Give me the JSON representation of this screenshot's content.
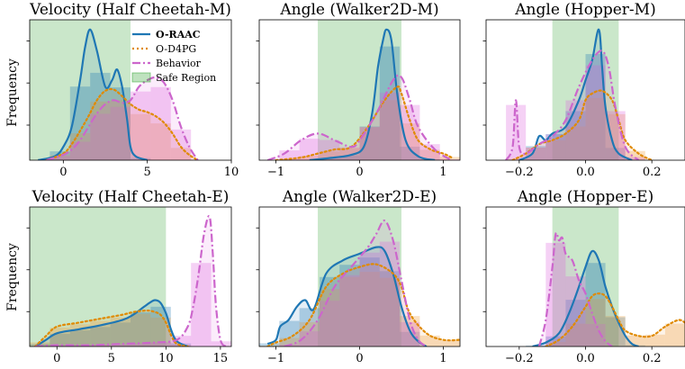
{
  "figure": {
    "ylabel": "Frequency"
  },
  "colors": {
    "oraac": "#1f77b4",
    "od4pg": "#e08a00",
    "behavior": "#cc66cc",
    "safe": "#2ca02c",
    "hist_oraac": "#1f77b4",
    "hist_od4pg": "#f0a040",
    "hist_behavior": "#dd66dd"
  },
  "legend": {
    "items": [
      {
        "label": "O-RAAC",
        "key": "oraac",
        "style": "solid"
      },
      {
        "label": "O-D4PG",
        "key": "od4pg",
        "style": "dotted"
      },
      {
        "label": "Behavior",
        "key": "behavior",
        "style": "dashdot"
      },
      {
        "label": "Safe Region",
        "key": "safe",
        "style": "patch"
      }
    ]
  },
  "chart_data": [
    {
      "type": "area",
      "title": "Velocity (Half Cheetah-M)",
      "xlim": [
        -2,
        10
      ],
      "xticks": [
        0,
        5,
        10
      ],
      "safe_region": [
        -2,
        4
      ],
      "series": [
        {
          "name": "O-RAAC",
          "x": [
            -1.5,
            -0.5,
            0,
            0.5,
            1,
            1.3,
            1.6,
            2,
            2.5,
            2.9,
            3.2,
            3.5,
            3.8,
            4,
            4.3,
            5
          ],
          "y": [
            0,
            0.03,
            0.1,
            0.25,
            0.6,
            0.85,
            0.98,
            0.82,
            0.55,
            0.6,
            0.68,
            0.55,
            0.3,
            0.1,
            0.03,
            0
          ]
        },
        {
          "name": "O-D4PG",
          "x": [
            -1,
            0,
            0.5,
            1,
            1.5,
            2,
            2.5,
            3,
            3.5,
            4,
            4.5,
            5,
            5.5,
            6,
            6.5,
            7,
            7.5,
            8
          ],
          "y": [
            0,
            0.05,
            0.12,
            0.22,
            0.33,
            0.45,
            0.52,
            0.53,
            0.48,
            0.42,
            0.38,
            0.36,
            0.33,
            0.28,
            0.2,
            0.1,
            0.04,
            0
          ]
        },
        {
          "name": "Behavior",
          "x": [
            -1,
            0,
            0.5,
            1,
            1.5,
            2,
            2.5,
            3,
            3.5,
            4,
            4.5,
            5,
            5.5,
            6,
            6.5,
            7,
            7.5,
            8
          ],
          "y": [
            0,
            0.04,
            0.08,
            0.15,
            0.25,
            0.35,
            0.42,
            0.45,
            0.43,
            0.45,
            0.55,
            0.6,
            0.62,
            0.58,
            0.45,
            0.25,
            0.1,
            0
          ]
        }
      ]
    },
    {
      "type": "area",
      "title": "Angle (Walker2D-M)",
      "xlim": [
        -1.2,
        1.2
      ],
      "xticks": [
        -1,
        0,
        1
      ],
      "safe_region": [
        -0.5,
        0.5
      ],
      "series": [
        {
          "name": "O-RAAC",
          "x": [
            -0.6,
            -0.3,
            -0.1,
            0.05,
            0.15,
            0.22,
            0.28,
            0.32,
            0.38,
            0.45,
            0.55,
            0.7,
            0.9
          ],
          "y": [
            0,
            0.02,
            0.04,
            0.1,
            0.35,
            0.7,
            0.9,
            0.98,
            0.9,
            0.5,
            0.15,
            0.03,
            0
          ]
        },
        {
          "name": "O-D4PG",
          "x": [
            -1,
            -0.7,
            -0.5,
            -0.3,
            -0.1,
            0.1,
            0.3,
            0.45,
            0.5,
            0.6,
            0.7,
            0.85,
            1,
            1.1
          ],
          "y": [
            0,
            0.02,
            0.05,
            0.08,
            0.1,
            0.25,
            0.45,
            0.55,
            0.5,
            0.3,
            0.15,
            0.08,
            0.05,
            0.02
          ]
        },
        {
          "name": "Behavior",
          "x": [
            -1.1,
            -0.9,
            -0.7,
            -0.5,
            -0.3,
            -0.1,
            0,
            0.2,
            0.4,
            0.5,
            0.6,
            0.7,
            0.9,
            1.1
          ],
          "y": [
            0,
            0.05,
            0.15,
            0.2,
            0.15,
            0.1,
            0.15,
            0.35,
            0.6,
            0.62,
            0.45,
            0.25,
            0.08,
            0
          ]
        }
      ]
    },
    {
      "type": "area",
      "title": "Angle (Hopper-M)",
      "xlim": [
        -0.3,
        0.3
      ],
      "xticks": [
        -0.2,
        0.0,
        0.2
      ],
      "safe_region": [
        -0.1,
        0.1
      ],
      "series": [
        {
          "name": "O-RAAC",
          "x": [
            -0.2,
            -0.16,
            -0.14,
            -0.12,
            -0.1,
            -0.06,
            -0.02,
            0,
            0.02,
            0.04,
            0.05,
            0.06,
            0.08,
            0.1,
            0.14
          ],
          "y": [
            0,
            0.05,
            0.18,
            0.15,
            0.2,
            0.25,
            0.45,
            0.6,
            0.75,
            0.98,
            0.7,
            0.4,
            0.15,
            0.05,
            0
          ]
        },
        {
          "name": "O-D4PG",
          "x": [
            -0.22,
            -0.18,
            -0.14,
            -0.1,
            -0.06,
            -0.02,
            0,
            0.02,
            0.05,
            0.08,
            0.1,
            0.12,
            0.16,
            0.2
          ],
          "y": [
            0,
            0.05,
            0.12,
            0.15,
            0.2,
            0.3,
            0.45,
            0.5,
            0.52,
            0.45,
            0.3,
            0.15,
            0.05,
            0
          ]
        },
        {
          "name": "Behavior",
          "x": [
            -0.24,
            -0.22,
            -0.21,
            -0.2,
            -0.18,
            -0.14,
            -0.1,
            -0.06,
            -0.02,
            0.02,
            0.05,
            0.07,
            0.09,
            0.12,
            0.16
          ],
          "y": [
            0,
            0.1,
            0.45,
            0.1,
            0.05,
            0.12,
            0.18,
            0.3,
            0.55,
            0.75,
            0.82,
            0.7,
            0.4,
            0.1,
            0
          ]
        }
      ]
    },
    {
      "type": "area",
      "title": "Velocity (Half Cheetah-E)",
      "xlim": [
        -2.5,
        16
      ],
      "xticks": [
        0,
        5,
        10,
        15
      ],
      "safe_region": [
        -2.5,
        10
      ],
      "series": [
        {
          "name": "O-RAAC",
          "x": [
            -2,
            -1,
            0,
            2,
            4,
            6,
            7,
            8,
            8.5,
            9,
            9.5,
            10,
            10.5,
            11,
            12
          ],
          "y": [
            0,
            0.05,
            0.1,
            0.13,
            0.16,
            0.2,
            0.24,
            0.3,
            0.33,
            0.35,
            0.33,
            0.25,
            0.12,
            0.04,
            0
          ]
        },
        {
          "name": "O-D4PG",
          "x": [
            -2,
            -1,
            0,
            2,
            4,
            6,
            7,
            8,
            8.5,
            9,
            9.5,
            10,
            10.5,
            11,
            12
          ],
          "y": [
            0,
            0.08,
            0.15,
            0.18,
            0.21,
            0.24,
            0.26,
            0.27,
            0.27,
            0.26,
            0.24,
            0.18,
            0.08,
            0.02,
            0
          ]
        },
        {
          "name": "Behavior",
          "x": [
            -2,
            0,
            3,
            6,
            9,
            11,
            12,
            12.5,
            13,
            13.5,
            14,
            14.3,
            14.6,
            15,
            15.5
          ],
          "y": [
            0,
            0.01,
            0.01,
            0.02,
            0.03,
            0.05,
            0.15,
            0.3,
            0.55,
            0.85,
            0.98,
            0.7,
            0.3,
            0.05,
            0
          ]
        }
      ]
    },
    {
      "type": "area",
      "title": "Angle (Walker2D-E)",
      "xlim": [
        -1.2,
        1.2
      ],
      "xticks": [
        -1,
        0,
        1
      ],
      "safe_region": [
        -0.5,
        0.5
      ],
      "series": [
        {
          "name": "O-RAAC",
          "x": [
            -1.1,
            -1,
            -0.95,
            -0.85,
            -0.75,
            -0.65,
            -0.55,
            -0.4,
            -0.2,
            0,
            0.2,
            0.3,
            0.4,
            0.5,
            0.6,
            0.7,
            0.8
          ],
          "y": [
            0.02,
            0.05,
            0.15,
            0.2,
            0.3,
            0.35,
            0.28,
            0.55,
            0.65,
            0.7,
            0.75,
            0.72,
            0.55,
            0.3,
            0.12,
            0.04,
            0
          ]
        },
        {
          "name": "O-D4PG",
          "x": [
            -1.1,
            -1,
            -0.8,
            -0.6,
            -0.4,
            -0.2,
            0,
            0.2,
            0.4,
            0.5,
            0.6,
            0.8,
            1,
            1.2
          ],
          "y": [
            0,
            0.03,
            0.08,
            0.2,
            0.45,
            0.55,
            0.6,
            0.62,
            0.55,
            0.45,
            0.25,
            0.1,
            0.05,
            0.05
          ]
        },
        {
          "name": "Behavior",
          "x": [
            -0.9,
            -0.7,
            -0.5,
            -0.3,
            -0.1,
            0.1,
            0.2,
            0.3,
            0.4,
            0.5,
            0.6,
            0.7,
            0.8
          ],
          "y": [
            0,
            0.05,
            0.2,
            0.45,
            0.6,
            0.75,
            0.85,
            0.95,
            0.8,
            0.5,
            0.2,
            0.05,
            0
          ]
        }
      ]
    },
    {
      "type": "area",
      "title": "Angle (Hopper-E)",
      "xlim": [
        -0.3,
        0.3
      ],
      "xticks": [
        -0.2,
        0.0,
        0.2
      ],
      "safe_region": [
        -0.1,
        0.1
      ],
      "series": [
        {
          "name": "O-RAAC",
          "x": [
            -0.16,
            -0.12,
            -0.08,
            -0.05,
            -0.02,
            0,
            0.02,
            0.04,
            0.06,
            0.08,
            0.1,
            0.12,
            0.14,
            0.16
          ],
          "y": [
            0,
            0.03,
            0.1,
            0.25,
            0.45,
            0.6,
            0.72,
            0.65,
            0.45,
            0.3,
            0.18,
            0.08,
            0.02,
            0
          ]
        },
        {
          "name": "O-D4PG",
          "x": [
            -0.12,
            -0.08,
            -0.04,
            0,
            0.02,
            0.04,
            0.06,
            0.08,
            0.1,
            0.12,
            0.16,
            0.2,
            0.24,
            0.28,
            0.3
          ],
          "y": [
            0,
            0.05,
            0.15,
            0.3,
            0.38,
            0.4,
            0.38,
            0.3,
            0.2,
            0.12,
            0.08,
            0.08,
            0.15,
            0.2,
            0.18
          ]
        },
        {
          "name": "Behavior",
          "x": [
            -0.14,
            -0.12,
            -0.1,
            -0.09,
            -0.08,
            -0.07,
            -0.06,
            -0.04,
            -0.02,
            0,
            0.02,
            0.04,
            0.06,
            0.08
          ],
          "y": [
            0,
            0.2,
            0.6,
            0.85,
            0.8,
            0.82,
            0.7,
            0.65,
            0.5,
            0.4,
            0.25,
            0.12,
            0.04,
            0
          ]
        }
      ]
    }
  ]
}
